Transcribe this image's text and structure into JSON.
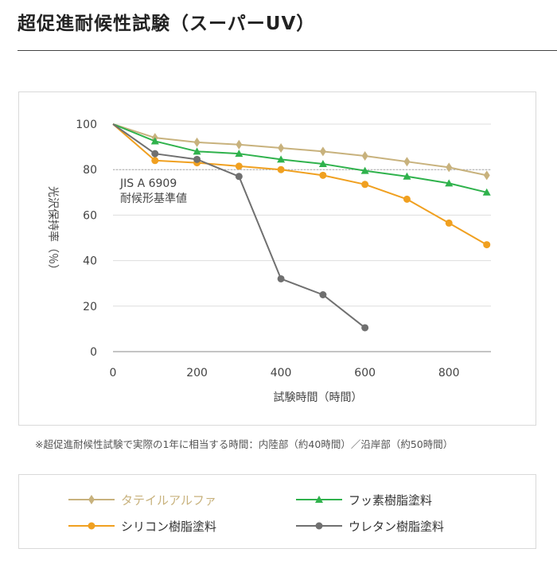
{
  "page": {
    "title": "超促進耐候性試験（スーパーUV）",
    "footnote": "※超促進耐候性試験で実際の1年に相当する時間：内陸部（約40時間）／沿岸部（約50時間）"
  },
  "chart_data": {
    "type": "line",
    "xlabel": "試験時間（時間）",
    "ylabel": "光沢保持率（％）",
    "xlim": [
      0,
      900
    ],
    "ylim": [
      0,
      100
    ],
    "x_ticks": [
      0,
      200,
      400,
      600,
      800
    ],
    "y_ticks": [
      0,
      20,
      40,
      60,
      80,
      100
    ],
    "reference_line": {
      "value": 80,
      "label_line1": "JIS A 6909",
      "label_line2": "耐候形基準値"
    },
    "series": [
      {
        "name": "タテイルアルファ",
        "color": "#c8b27d",
        "marker": "diamond",
        "x": [
          0,
          100,
          200,
          300,
          400,
          500,
          600,
          700,
          800,
          890
        ],
        "y": [
          100,
          94,
          92,
          91,
          89.5,
          88,
          86,
          83.5,
          81,
          77.5
        ]
      },
      {
        "name": "フッ素樹脂塗料",
        "color": "#2fb24c",
        "marker": "triangle",
        "x": [
          0,
          100,
          200,
          300,
          400,
          500,
          600,
          700,
          800,
          890
        ],
        "y": [
          100,
          92.5,
          88,
          87,
          84.5,
          82.5,
          79.5,
          77,
          74,
          70
        ]
      },
      {
        "name": "シリコン樹脂塗料",
        "color": "#f0a020",
        "marker": "circle",
        "x": [
          0,
          100,
          200,
          300,
          400,
          500,
          600,
          700,
          800,
          890
        ],
        "y": [
          100,
          84,
          83,
          81.5,
          80,
          77.5,
          73.5,
          67,
          56.5,
          47
        ]
      },
      {
        "name": "ウレタン樹脂塗料",
        "color": "#707070",
        "marker": "circle",
        "x": [
          0,
          100,
          200,
          300,
          400,
          500,
          600
        ],
        "y": [
          100,
          87,
          84.5,
          77,
          32,
          25,
          10.5
        ]
      }
    ]
  }
}
